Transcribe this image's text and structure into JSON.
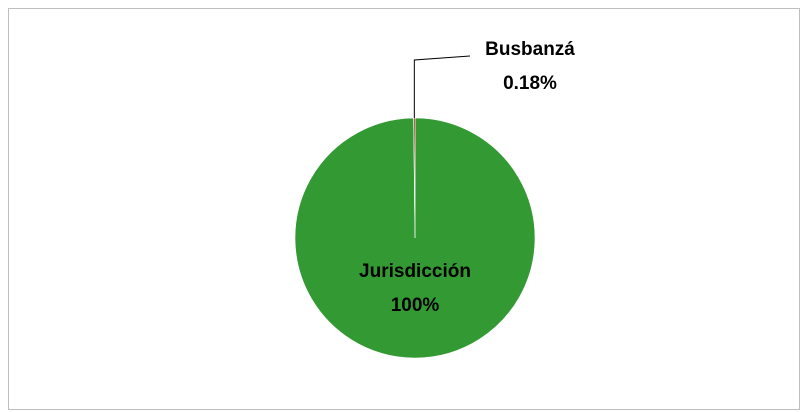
{
  "chart_data": {
    "type": "pie",
    "categories": [
      "Jurisdicción",
      "Busbanzá"
    ],
    "values": [
      100,
      0.18
    ],
    "value_labels": [
      "100%",
      "0.18%"
    ],
    "colors": [
      "#339933",
      "#c00000"
    ]
  }
}
